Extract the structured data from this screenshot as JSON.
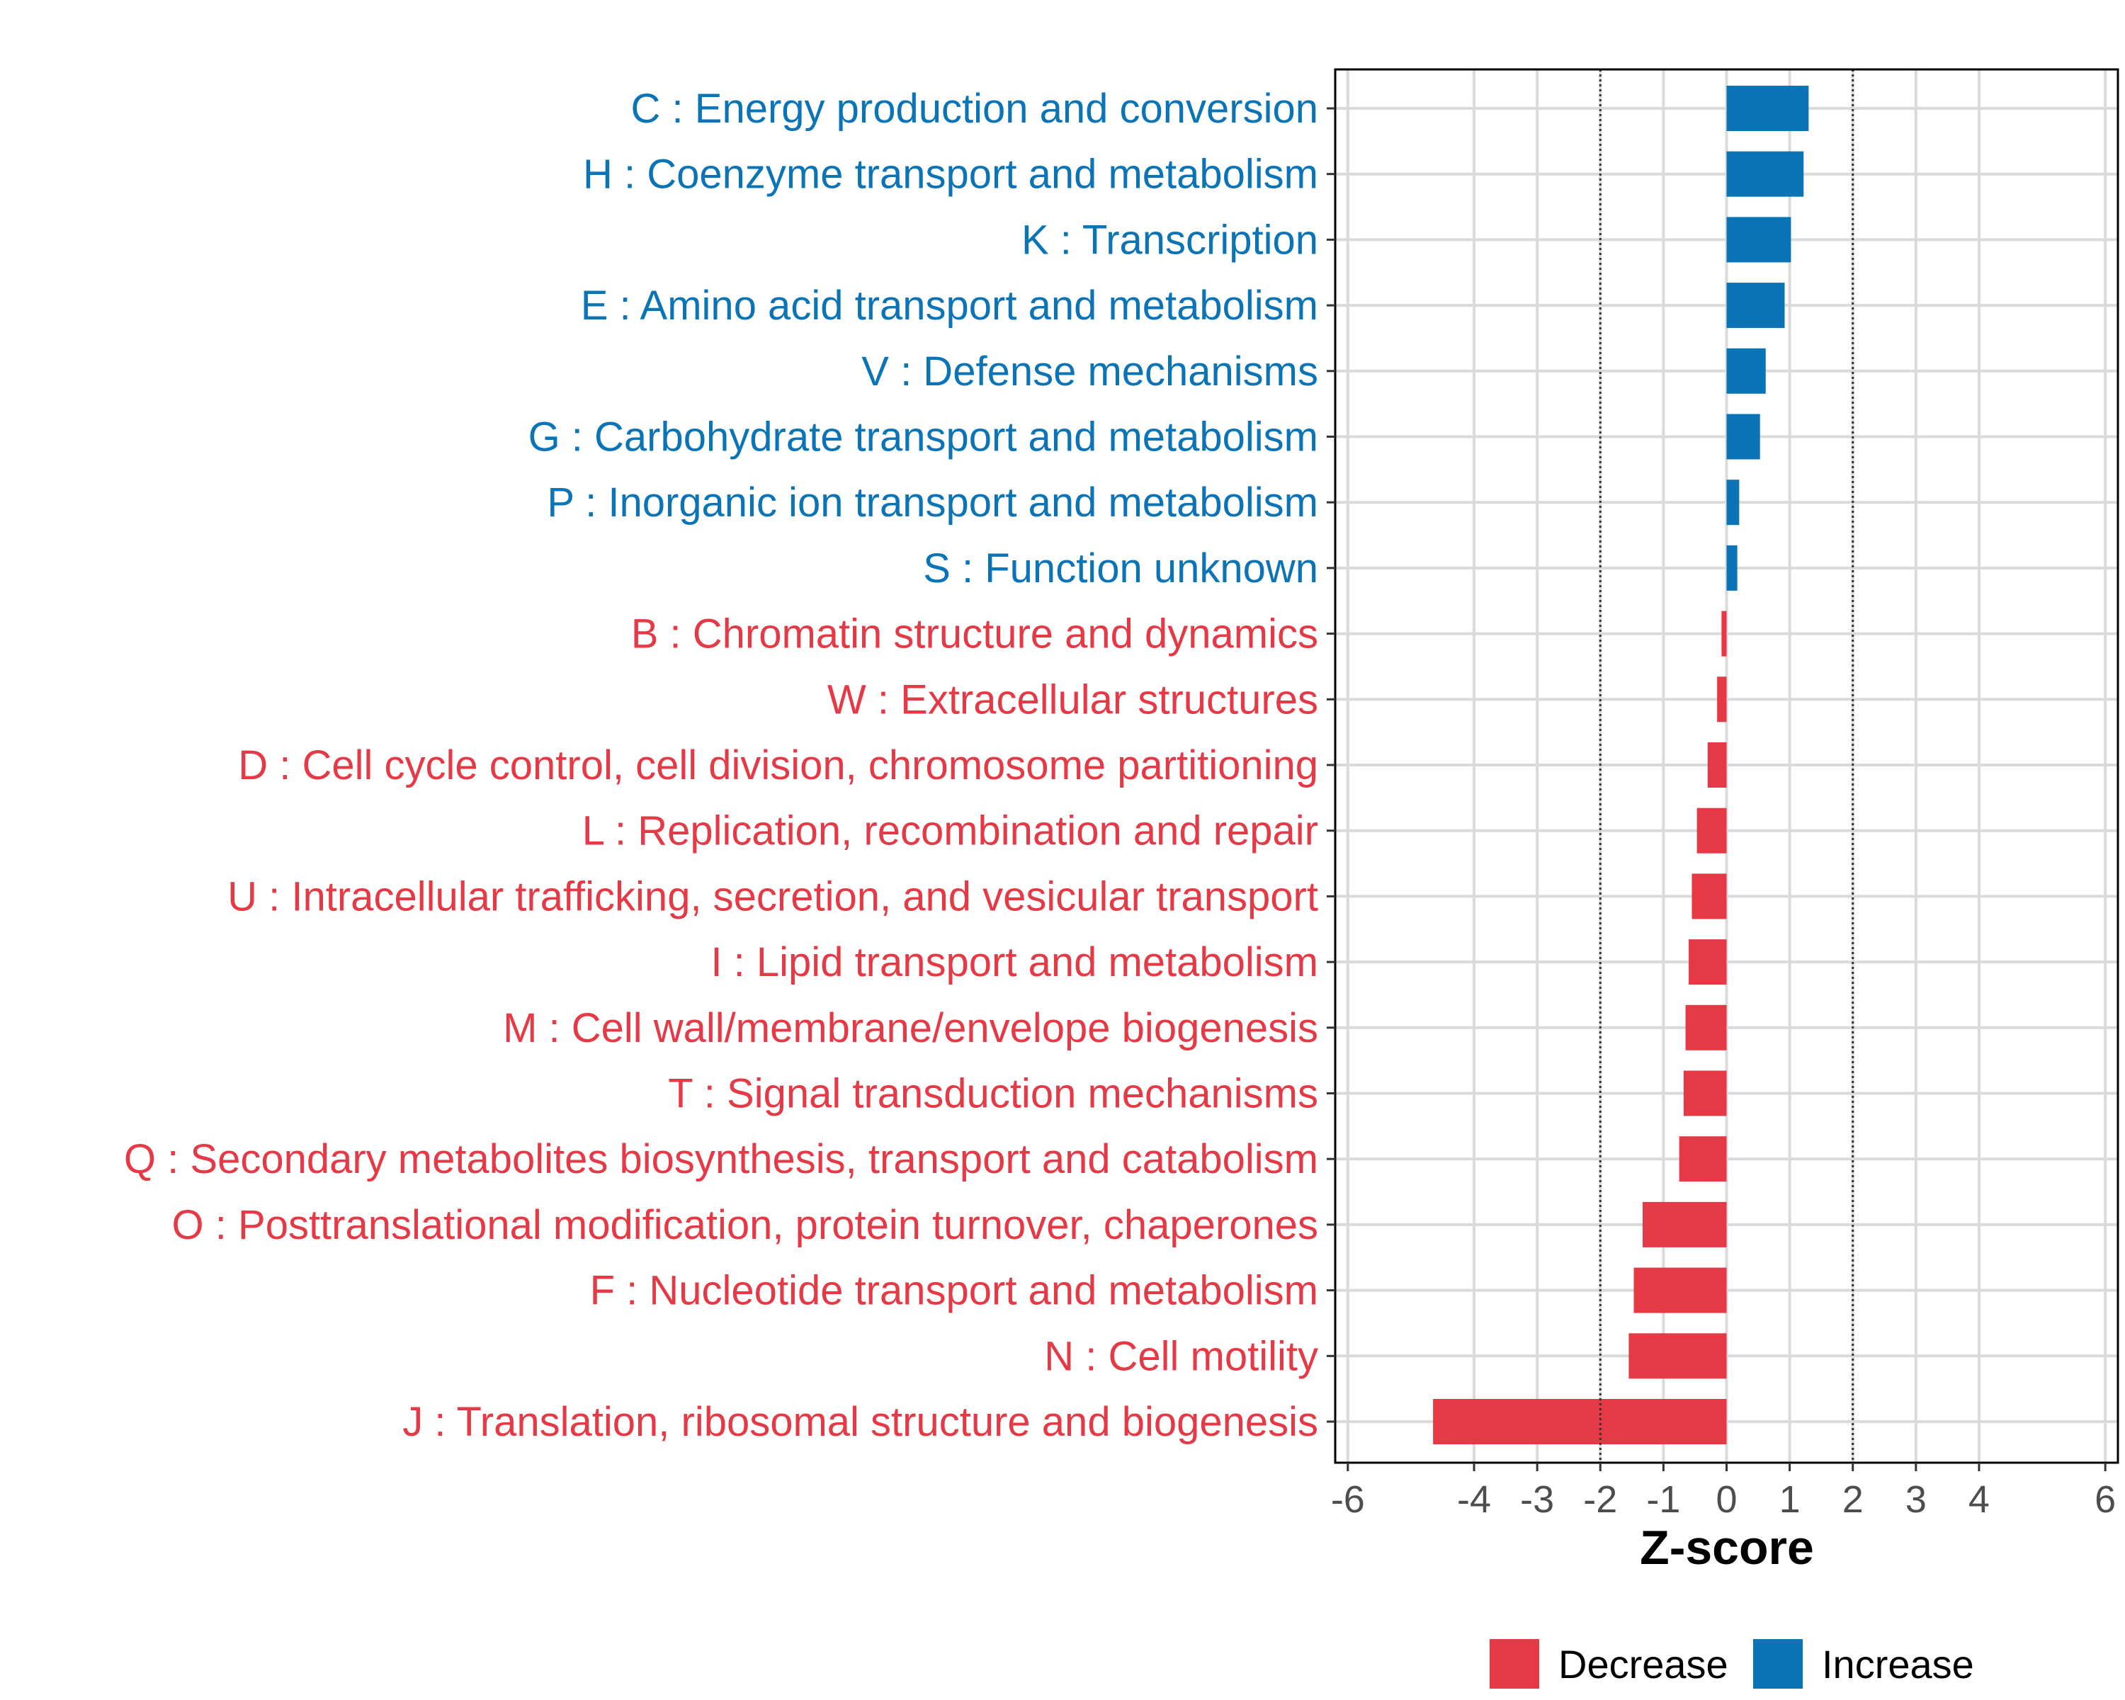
{
  "chart_data": {
    "type": "bar",
    "orientation": "horizontal",
    "title": "",
    "xlabel": "Z-score",
    "ylabel": "",
    "xlim": [
      -6.2,
      6.2
    ],
    "xticks": [
      -6,
      -4,
      -3,
      -2,
      -1,
      0,
      1,
      2,
      3,
      4,
      6
    ],
    "xtick_labels": [
      "-6",
      "-4",
      "-3",
      "-2",
      "-1",
      "0",
      "1",
      "2",
      "3",
      "4",
      "6"
    ],
    "threshold_lines": [
      -2,
      2
    ],
    "grid": true,
    "legend_position": "bottom",
    "colors": {
      "Decrease": "#E63946",
      "Increase": "#0A74B6"
    },
    "legend": [
      {
        "name": "Decrease",
        "color": "#E63946"
      },
      {
        "name": "Increase",
        "color": "#0A74B6"
      }
    ],
    "categories": [
      "C : Energy production and conversion",
      "H : Coenzyme transport and metabolism",
      "K : Transcription",
      "E : Amino acid transport and metabolism",
      "V : Defense mechanisms",
      "G : Carbohydrate transport and metabolism",
      "P : Inorganic ion transport and metabolism",
      "S : Function unknown",
      "B : Chromatin structure and dynamics",
      "W : Extracellular structures",
      "D : Cell cycle control, cell division, chromosome partitioning",
      "L : Replication, recombination and repair",
      "U : Intracellular trafficking, secretion, and vesicular transport",
      "I : Lipid transport and metabolism",
      "M : Cell wall/membrane/envelope biogenesis",
      "T : Signal transduction mechanisms",
      "Q : Secondary metabolites biosynthesis, transport and catabolism",
      "O : Posttranslational modification, protein turnover, chaperones",
      "F : Nucleotide transport and metabolism",
      "N : Cell motility",
      "J : Translation, ribosomal structure and biogenesis"
    ],
    "values": [
      1.3,
      1.22,
      1.02,
      0.92,
      0.62,
      0.53,
      0.2,
      0.17,
      -0.08,
      -0.15,
      -0.3,
      -0.47,
      -0.55,
      -0.6,
      -0.65,
      -0.68,
      -0.75,
      -1.33,
      -1.47,
      -1.55,
      -4.65
    ],
    "groups": [
      "Increase",
      "Increase",
      "Increase",
      "Increase",
      "Increase",
      "Increase",
      "Increase",
      "Increase",
      "Decrease",
      "Decrease",
      "Decrease",
      "Decrease",
      "Decrease",
      "Decrease",
      "Decrease",
      "Decrease",
      "Decrease",
      "Decrease",
      "Decrease",
      "Decrease",
      "Decrease"
    ]
  }
}
